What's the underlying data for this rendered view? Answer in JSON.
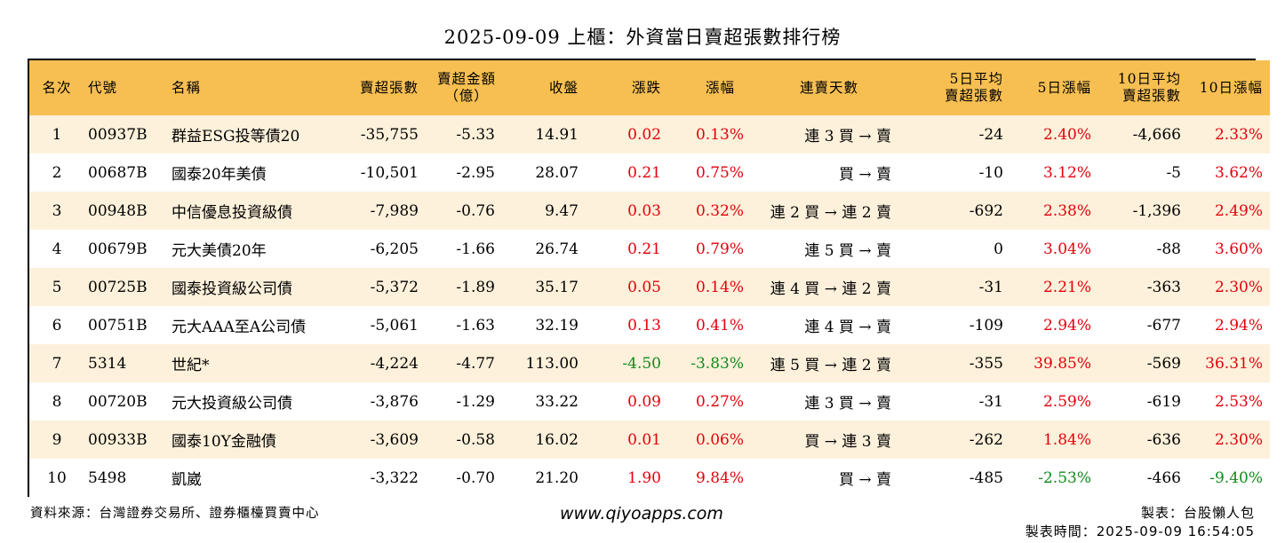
{
  "title": "2025-09-09 上櫃：外資當日賣超張數排行榜",
  "headers": {
    "rank": "名次",
    "code": "代號",
    "name": "名稱",
    "sell_lots": "賣超張數",
    "sell_amount_1": "賣超金額",
    "sell_amount_2": "（億）",
    "close": "收盤",
    "change": "漲跌",
    "change_pct": "漲幅",
    "streak": "連賣天數",
    "avg5_1": "5日平均",
    "avg5_2": "賣超張數",
    "pct5": "5日漲幅",
    "avg10_1": "10日平均",
    "avg10_2": "賣超張數",
    "pct10": "10日漲幅"
  },
  "rows": [
    {
      "rank": "1",
      "code": "00937B",
      "name": "群益ESG投等債20",
      "sell_lots": "-35,755",
      "sell_amount": "-5.33",
      "close": "14.91",
      "change": "0.02",
      "change_pct": "0.13%",
      "streak": "連 3 買 → 賣",
      "avg5": "-24",
      "pct5": "2.40%",
      "avg10": "-4,666",
      "pct10": "2.33%",
      "change_color": "red",
      "pct5_color": "red",
      "pct10_color": "red"
    },
    {
      "rank": "2",
      "code": "00687B",
      "name": "國泰20年美債",
      "sell_lots": "-10,501",
      "sell_amount": "-2.95",
      "close": "28.07",
      "change": "0.21",
      "change_pct": "0.75%",
      "streak": "買 → 賣",
      "avg5": "-10",
      "pct5": "3.12%",
      "avg10": "-5",
      "pct10": "3.62%",
      "change_color": "red",
      "pct5_color": "red",
      "pct10_color": "red"
    },
    {
      "rank": "3",
      "code": "00948B",
      "name": "中信優息投資級債",
      "sell_lots": "-7,989",
      "sell_amount": "-0.76",
      "close": "9.47",
      "change": "0.03",
      "change_pct": "0.32%",
      "streak": "連 2 買 → 連 2 賣",
      "avg5": "-692",
      "pct5": "2.38%",
      "avg10": "-1,396",
      "pct10": "2.49%",
      "change_color": "red",
      "pct5_color": "red",
      "pct10_color": "red"
    },
    {
      "rank": "4",
      "code": "00679B",
      "name": "元大美債20年",
      "sell_lots": "-6,205",
      "sell_amount": "-1.66",
      "close": "26.74",
      "change": "0.21",
      "change_pct": "0.79%",
      "streak": "連 5 買 → 賣",
      "avg5": "0",
      "pct5": "3.04%",
      "avg10": "-88",
      "pct10": "3.60%",
      "change_color": "red",
      "pct5_color": "red",
      "pct10_color": "red"
    },
    {
      "rank": "5",
      "code": "00725B",
      "name": "國泰投資級公司債",
      "sell_lots": "-5,372",
      "sell_amount": "-1.89",
      "close": "35.17",
      "change": "0.05",
      "change_pct": "0.14%",
      "streak": "連 4 買 → 連 2 賣",
      "avg5": "-31",
      "pct5": "2.21%",
      "avg10": "-363",
      "pct10": "2.30%",
      "change_color": "red",
      "pct5_color": "red",
      "pct10_color": "red"
    },
    {
      "rank": "6",
      "code": "00751B",
      "name": "元大AAA至A公司債",
      "sell_lots": "-5,061",
      "sell_amount": "-1.63",
      "close": "32.19",
      "change": "0.13",
      "change_pct": "0.41%",
      "streak": "連 4 買 → 賣",
      "avg5": "-109",
      "pct5": "2.94%",
      "avg10": "-677",
      "pct10": "2.94%",
      "change_color": "red",
      "pct5_color": "red",
      "pct10_color": "red"
    },
    {
      "rank": "7",
      "code": "5314",
      "name": "世紀*",
      "sell_lots": "-4,224",
      "sell_amount": "-4.77",
      "close": "113.00",
      "change": "-4.50",
      "change_pct": "-3.83%",
      "streak": "連 5 買 → 連 2 賣",
      "avg5": "-355",
      "pct5": "39.85%",
      "avg10": "-569",
      "pct10": "36.31%",
      "change_color": "green",
      "pct5_color": "red",
      "pct10_color": "red"
    },
    {
      "rank": "8",
      "code": "00720B",
      "name": "元大投資級公司債",
      "sell_lots": "-3,876",
      "sell_amount": "-1.29",
      "close": "33.22",
      "change": "0.09",
      "change_pct": "0.27%",
      "streak": "連 3 買 → 賣",
      "avg5": "-31",
      "pct5": "2.59%",
      "avg10": "-619",
      "pct10": "2.53%",
      "change_color": "red",
      "pct5_color": "red",
      "pct10_color": "red"
    },
    {
      "rank": "9",
      "code": "00933B",
      "name": "國泰10Y金融債",
      "sell_lots": "-3,609",
      "sell_amount": "-0.58",
      "close": "16.02",
      "change": "0.01",
      "change_pct": "0.06%",
      "streak": "買 → 連 3 賣",
      "avg5": "-262",
      "pct5": "1.84%",
      "avg10": "-636",
      "pct10": "2.30%",
      "change_color": "red",
      "pct5_color": "red",
      "pct10_color": "red"
    },
    {
      "rank": "10",
      "code": "5498",
      "name": "凱崴",
      "sell_lots": "-3,322",
      "sell_amount": "-0.70",
      "close": "21.20",
      "change": "1.90",
      "change_pct": "9.84%",
      "streak": "買 → 賣",
      "avg5": "-485",
      "pct5": "-2.53%",
      "avg10": "-466",
      "pct10": "-9.40%",
      "change_color": "red",
      "pct5_color": "green",
      "pct10_color": "green"
    }
  ],
  "footer": {
    "source": "資料來源：台灣證券交易所、證券櫃檯買賣中心",
    "website": "www.qiyoapps.com",
    "maker": "製表：台股懶人包",
    "time": "製表時間：2025-09-09 16:54:05"
  },
  "colors": {
    "header_bg": "#f7bf52",
    "row_alt_bg": "#fdf1db",
    "up": "#e3000b",
    "down": "#108a1a"
  }
}
